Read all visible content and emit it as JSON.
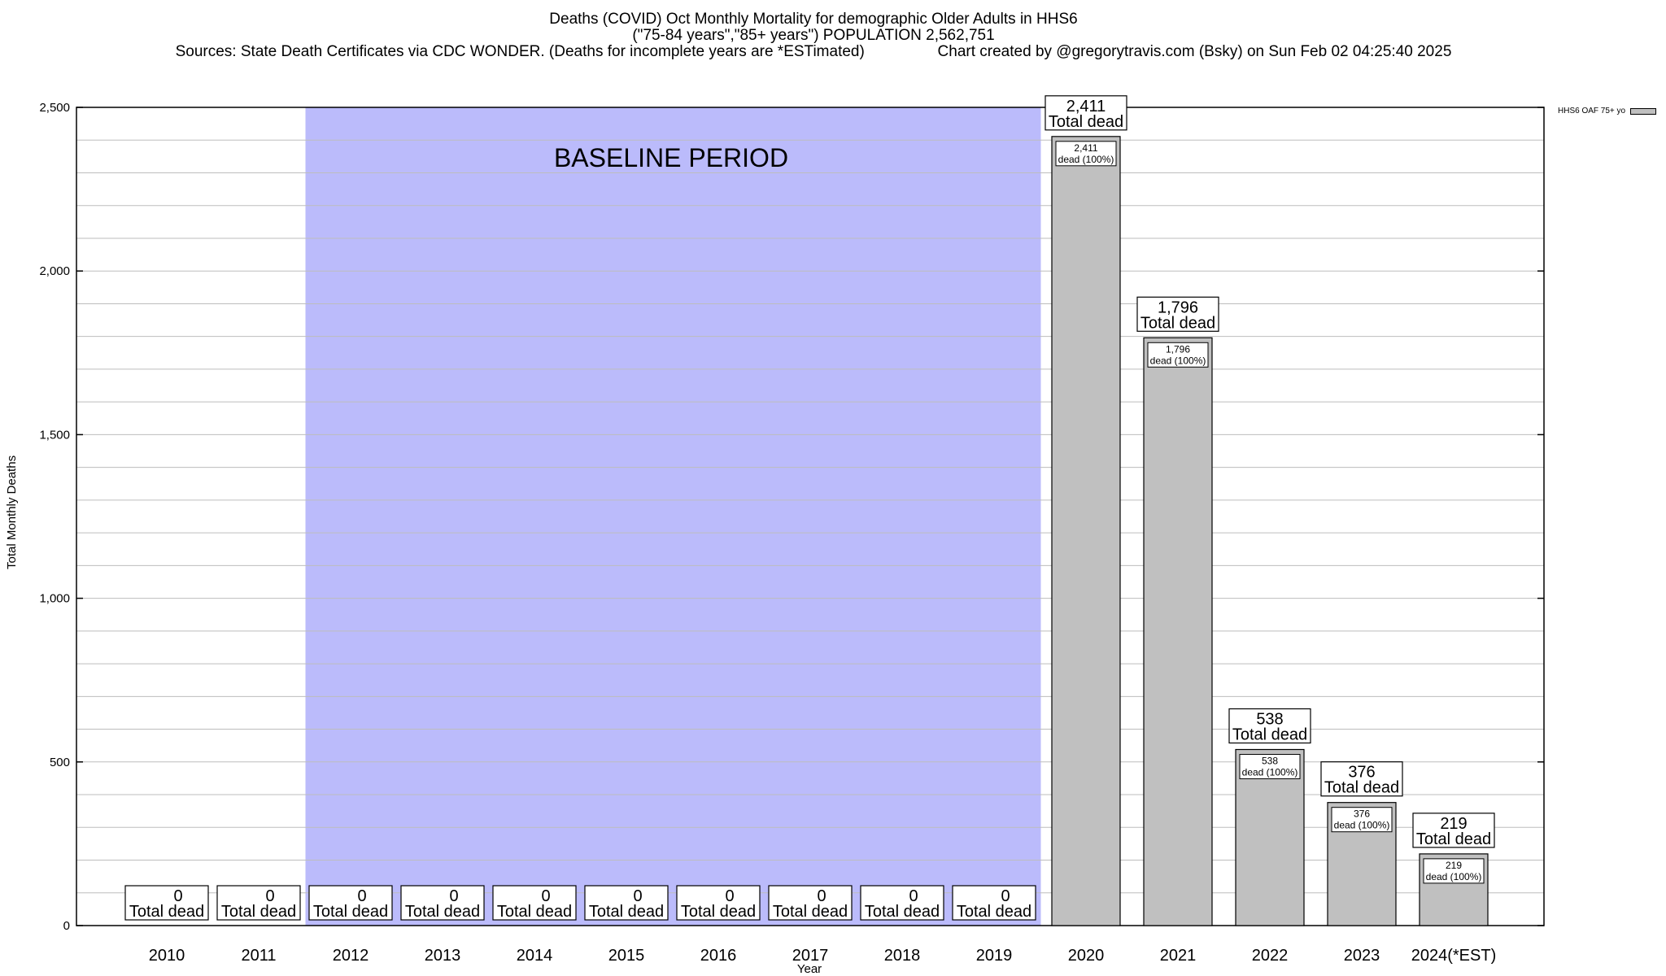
{
  "title": {
    "line1": "Deaths (COVID) Oct Monthly Mortality for demographic Older Adults in HHS6",
    "line2": "(\"75-84 years\",\"85+ years\") POPULATION 2,562,751",
    "line3": "Sources: State Death Certificates via CDC WONDER. (Deaths for incomplete years are *ESTimated)                 Chart created by @gregorytravis.com (Bsky) on Sun Feb 02 04:25:40 2025"
  },
  "legend": {
    "label": "HHS6 OAF 75+ yo",
    "color": "#c0c0c0"
  },
  "baseline": {
    "label": "BASELINE PERIOD",
    "color": "#bbbbfb",
    "from": "2012",
    "to": "2019"
  },
  "chart_data": {
    "type": "bar",
    "categories": [
      "2010",
      "2011",
      "2012",
      "2013",
      "2014",
      "2015",
      "2016",
      "2017",
      "2018",
      "2019",
      "2020",
      "2021",
      "2022",
      "2023",
      "2024(*EST)"
    ],
    "series": [
      {
        "name": "HHS6 OAF 75+ yo",
        "values": [
          0,
          0,
          0,
          0,
          0,
          0,
          0,
          0,
          0,
          0,
          2411,
          1796,
          538,
          376,
          219
        ]
      }
    ],
    "value_labels": [
      "0",
      "0",
      "0",
      "0",
      "0",
      "0",
      "0",
      "0",
      "0",
      "0",
      "2,411",
      "1,796",
      "538",
      "376",
      "219"
    ],
    "total_label_suffix": "Total dead",
    "inner_label_suffix": "dead (100%)",
    "xlabel": "Year",
    "ylabel": "Total Monthly Deaths",
    "ylim": [
      0,
      2500
    ],
    "yticks": [
      0,
      500,
      1000,
      1500,
      2000,
      2500
    ],
    "ytick_labels": [
      "0",
      "500",
      "1,000",
      "1,500",
      "2,000",
      "2,500"
    ],
    "grid": true,
    "legend_position": "top-right",
    "bar_color": "#c0c0c0"
  }
}
